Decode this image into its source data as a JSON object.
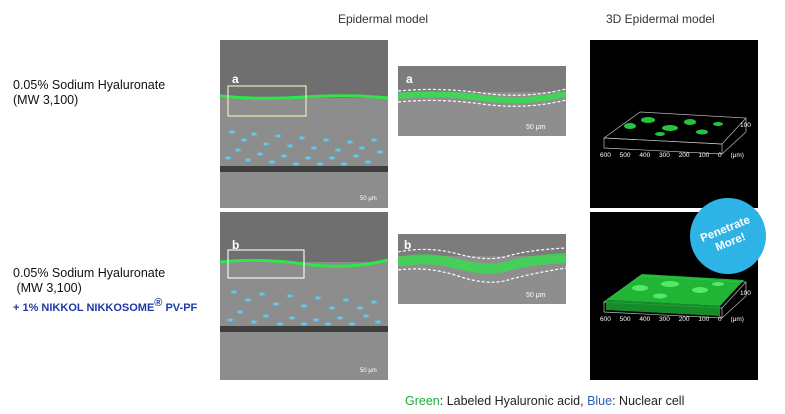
{
  "headers": {
    "epidermal": "Epidermal model",
    "epidermal_3d": "3D Epidermal model"
  },
  "rows": [
    {
      "label_line1": "0.05% Sodium Hyaluronate",
      "label_line2": "(MW 3,100)",
      "letter": "a",
      "scale_full": "50 μm",
      "scale_zoom": "50 μm",
      "axis_ticks": [
        "600",
        "500",
        "400",
        "300",
        "200",
        "100",
        "0"
      ],
      "axis_unit": "(μm)",
      "axis_z": "100"
    },
    {
      "label_line1": "0.05% Sodium Hyaluronate",
      "label_line2": " (MW 3,100)",
      "label_line3_prefix": "+ 1% NIKKOL NIKKOSOME",
      "label_line3_sup": "®",
      "label_line3_suffix": " PV-PF",
      "letter": "b",
      "scale_full": "50 μm",
      "scale_zoom": "50 μm",
      "axis_ticks": [
        "600",
        "500",
        "400",
        "300",
        "200",
        "100",
        "0"
      ],
      "axis_unit": "(μm)",
      "axis_z": "100"
    }
  ],
  "bubble": "Penetrate More!",
  "caption": {
    "green_word": "Green",
    "green_desc": ": Labeled Hyaluronic acid, ",
    "blue_word": "Blue",
    "blue_desc": ": Nuclear cell"
  },
  "colors": {
    "green_fluor": "#2ee64a",
    "blue_nuclei": "#5ad2ff",
    "bubble": "#2eb3e6"
  }
}
